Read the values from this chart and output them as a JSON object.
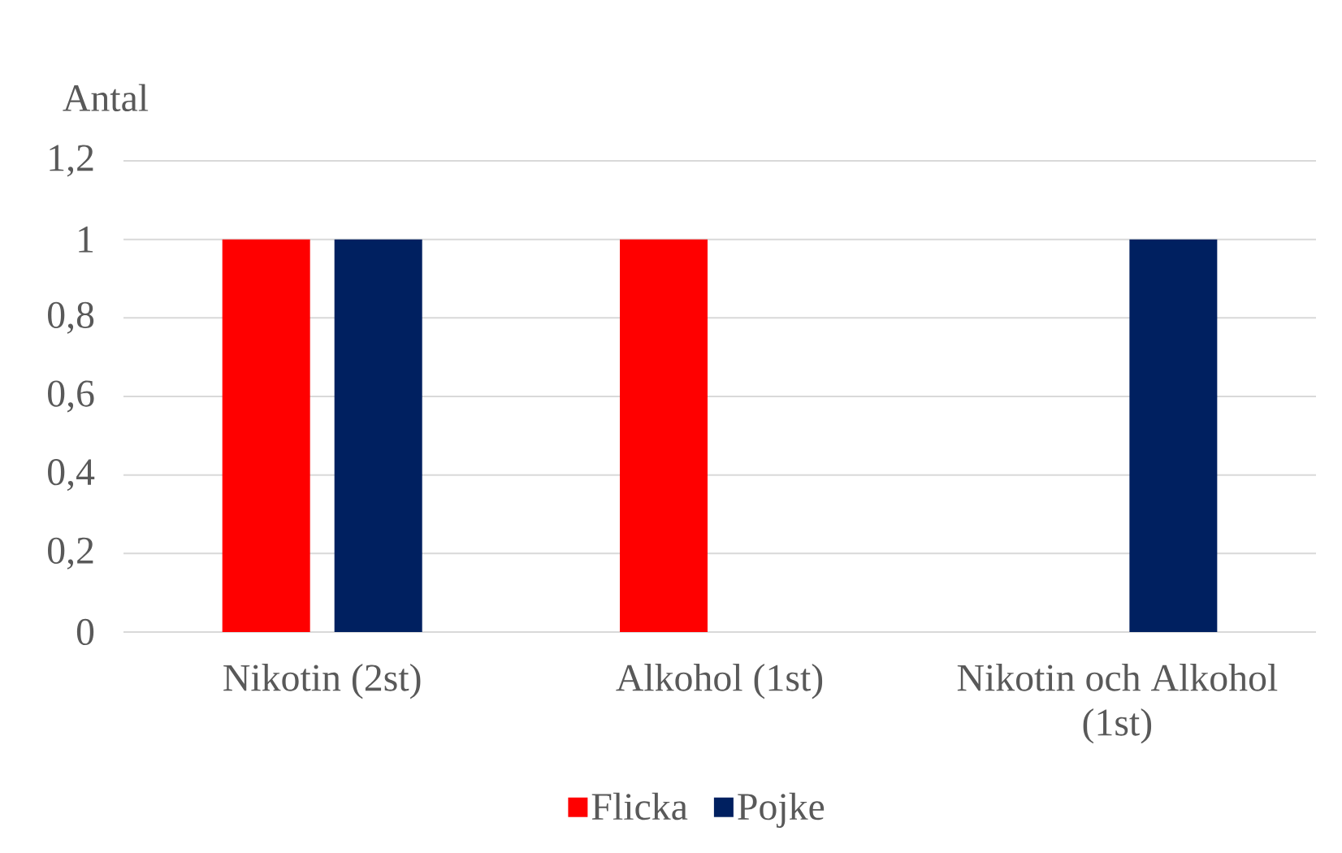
{
  "chart_data": {
    "type": "bar",
    "ylabel": "Antal",
    "categories": [
      "Nikotin (2st)",
      "Alkohol (1st)",
      "Nikotin och Alkohol (1st)"
    ],
    "series": [
      {
        "name": "Flicka",
        "color": "#ff0000",
        "values": [
          1,
          1,
          0
        ]
      },
      {
        "name": "Pojke",
        "color": "#002060",
        "values": [
          1,
          0,
          1
        ]
      }
    ],
    "ylim": [
      0,
      1.2
    ],
    "yticks": [
      0,
      {
        "value": 0.2,
        "label": "0,2"
      },
      {
        "value": 0.4,
        "label": "0,4"
      },
      {
        "value": 0.6,
        "label": "0,6"
      },
      {
        "value": 0.8,
        "label": "0,8"
      },
      1,
      {
        "value": 1.2,
        "label": "1,2"
      }
    ],
    "grid": "y",
    "legend": "bottom"
  }
}
